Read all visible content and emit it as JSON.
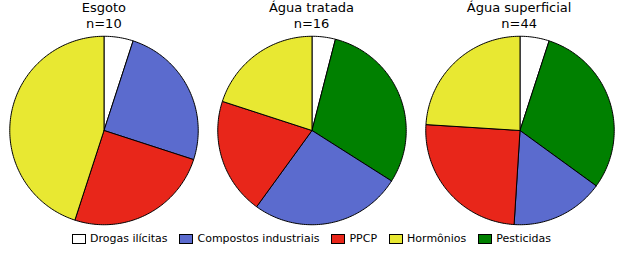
{
  "chart_data": [
    {
      "type": "pie",
      "title": "Esgoto",
      "subtitle": "n=10",
      "categories": [
        "Drogas ilícitas",
        "Compostos industriais",
        "PPCP",
        "Hormônios"
      ],
      "values": [
        5,
        25,
        25,
        45
      ],
      "colors": [
        "#ffffff",
        "#5b6bce",
        "#e8261a",
        "#e8e832"
      ],
      "legend": "bottom"
    },
    {
      "type": "pie",
      "title": "Água tratada",
      "subtitle": "n=16",
      "categories": [
        "Drogas ilícitas",
        "Pesticidas",
        "Compostos industriais",
        "PPCP",
        "Hormônios"
      ],
      "values": [
        4,
        30,
        26,
        20,
        20
      ],
      "colors": [
        "#ffffff",
        "#008000",
        "#5b6bce",
        "#e8261a",
        "#e8e832"
      ],
      "legend": "bottom"
    },
    {
      "type": "pie",
      "title": "Água superficial",
      "subtitle": "n=44",
      "categories": [
        "Drogas ilícitas",
        "Pesticidas",
        "Compostos industriais",
        "PPCP",
        "Hormônios"
      ],
      "values": [
        5,
        30,
        16,
        25,
        24
      ],
      "colors": [
        "#ffffff",
        "#008000",
        "#5b6bce",
        "#e8261a",
        "#e8e832"
      ],
      "legend": "bottom"
    }
  ]
}
